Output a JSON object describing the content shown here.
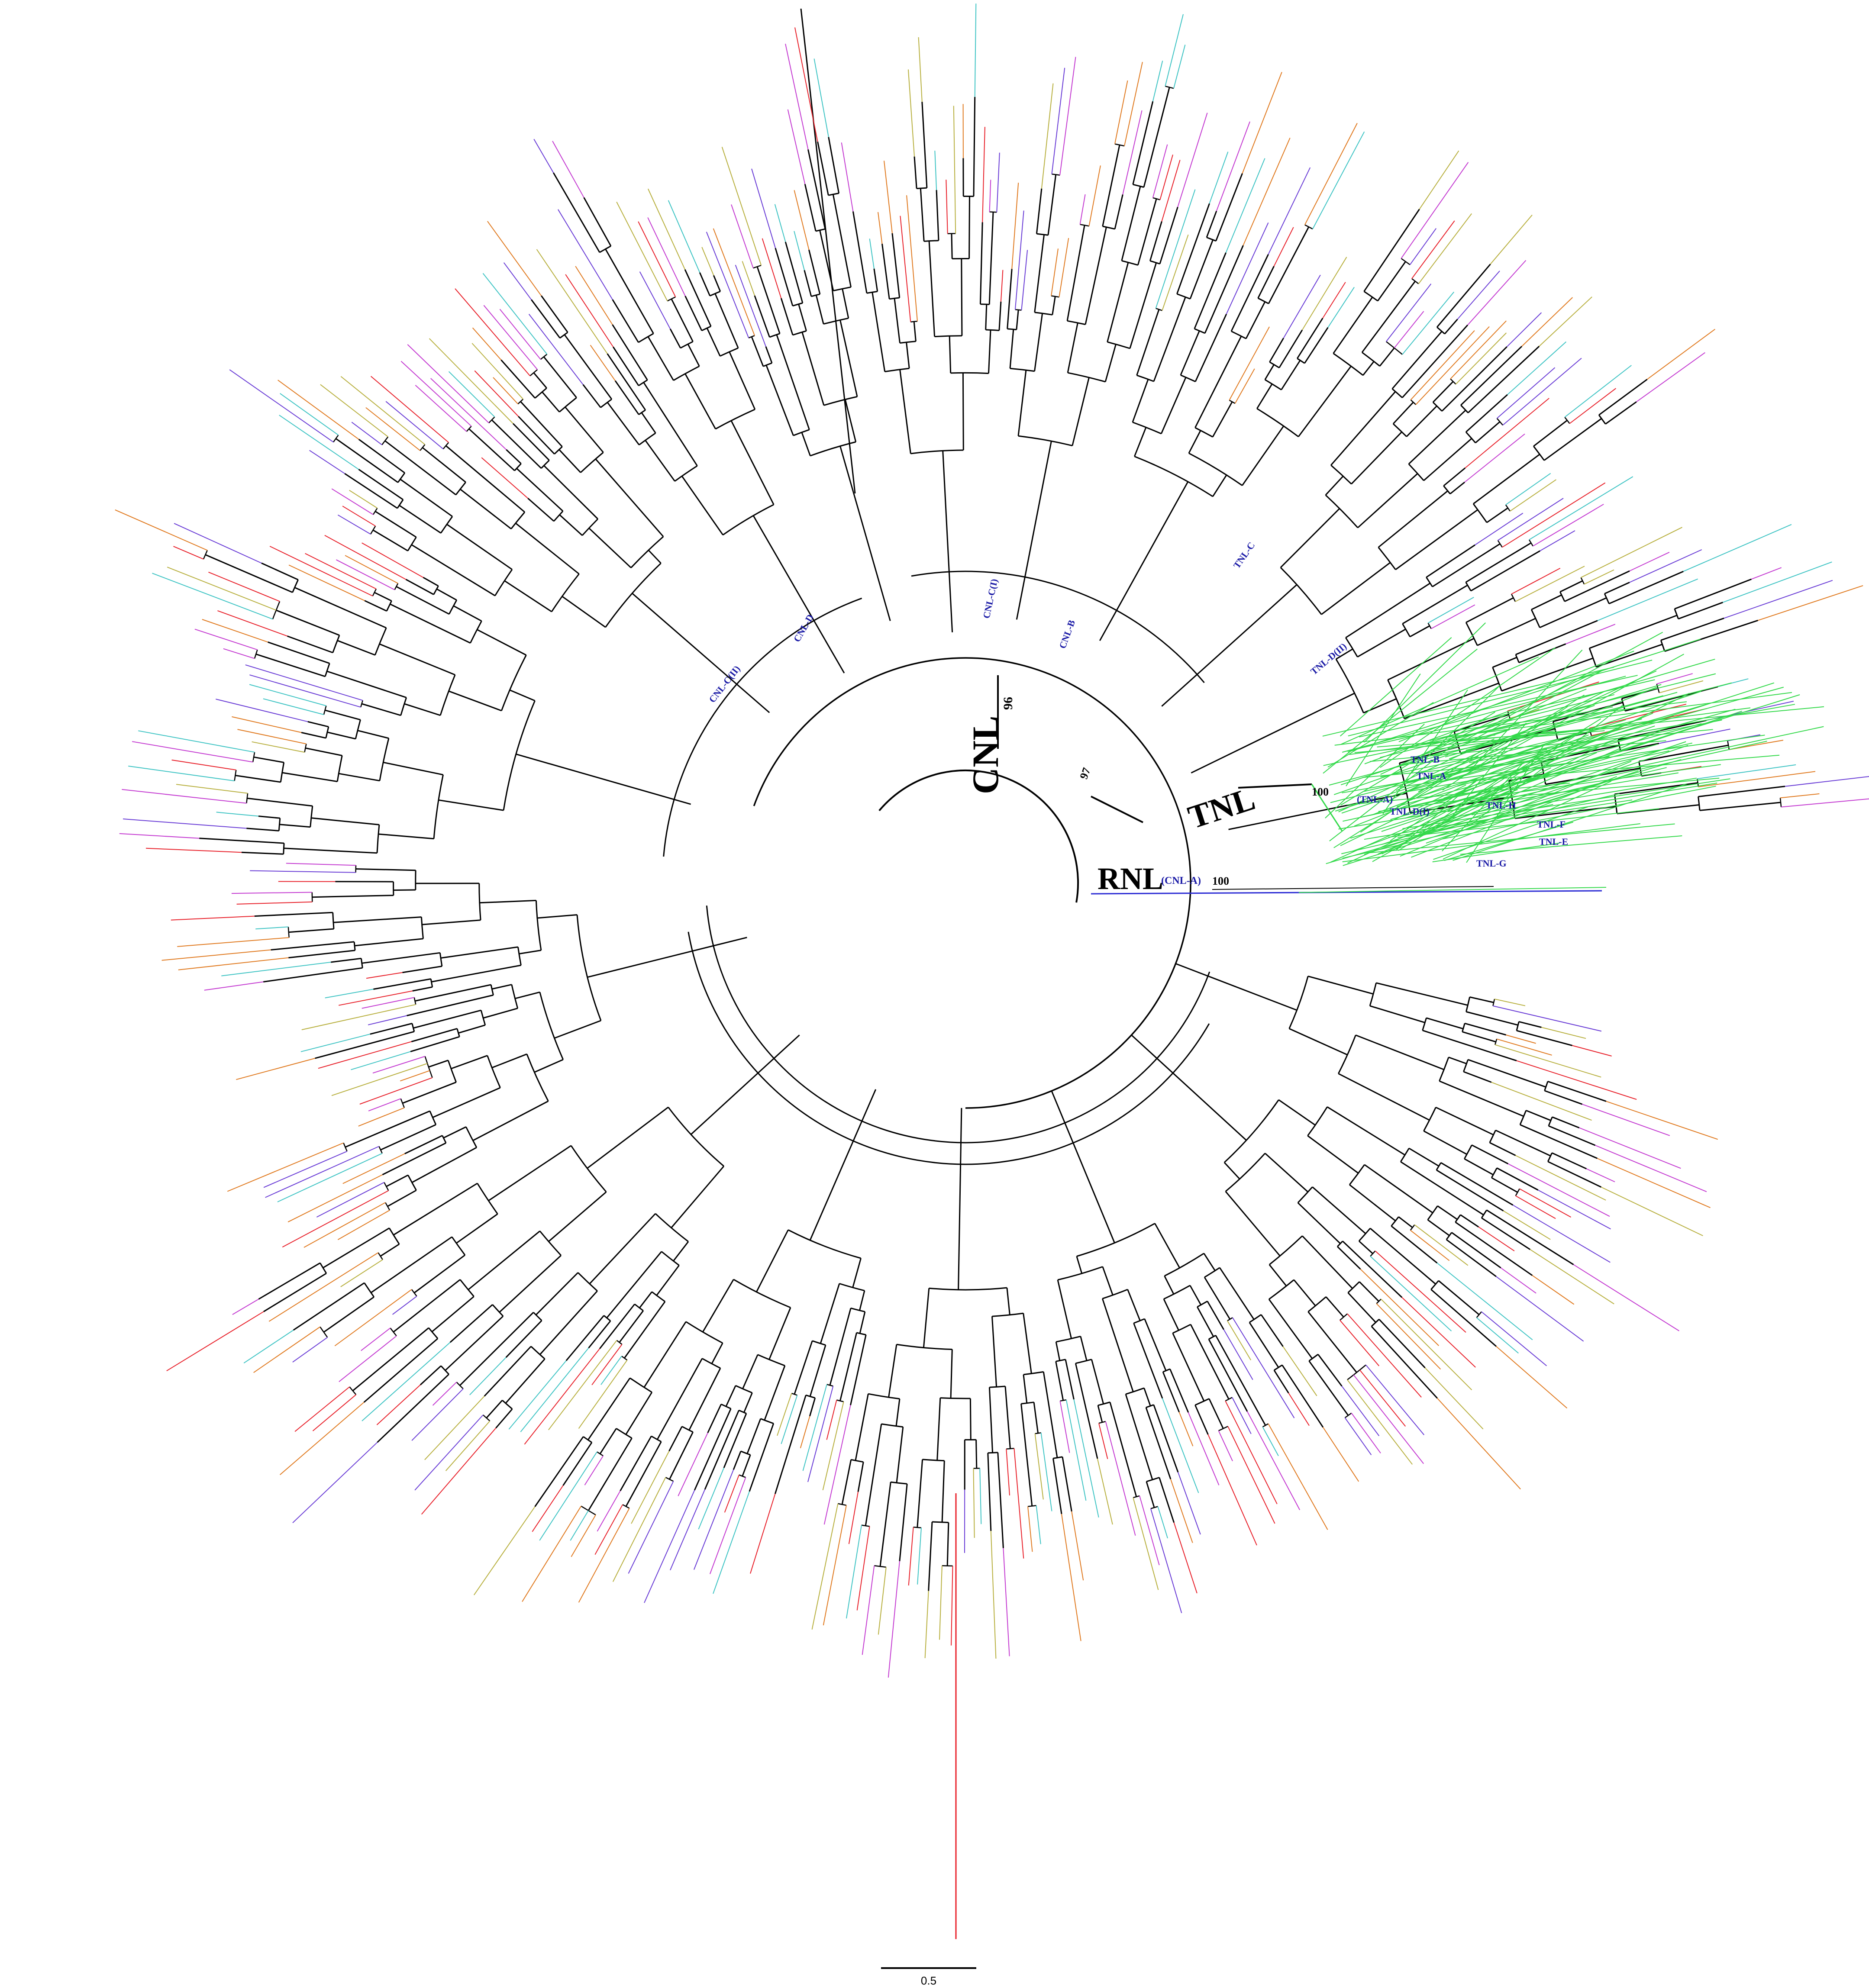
{
  "major_groups": [
    {
      "label": "CNL",
      "bootstrap": "96"
    },
    {
      "label": "TNL",
      "bootstrap": "100"
    },
    {
      "label": "RNL",
      "sub_label": "(CNL-A)",
      "bootstrap": "100"
    }
  ],
  "root_bootstrap": "97",
  "clades": [
    "CNL-C(II)",
    "CNL-D",
    "CNL-C(I)",
    "CNL-B",
    "TNL-C",
    "TNL-D(II)",
    "TNL-B",
    "TNL-A",
    "(TNL-A)",
    "TNL-D(I)",
    "TNL-H",
    "TNL-F",
    "TNL-E",
    "TNL-G"
  ],
  "scale_bar": {
    "label": "0.5"
  },
  "colors": {
    "branch": "#000000",
    "clade_label": "#1a1aa6",
    "leaf_palette": [
      "#e8202a",
      "#c43bd1",
      "#3fc4c4",
      "#b8b040",
      "#e07a20",
      "#6a3dd6"
    ],
    "tnl_green": "#33d94a",
    "rnl_blue": "#2a2ad4"
  }
}
